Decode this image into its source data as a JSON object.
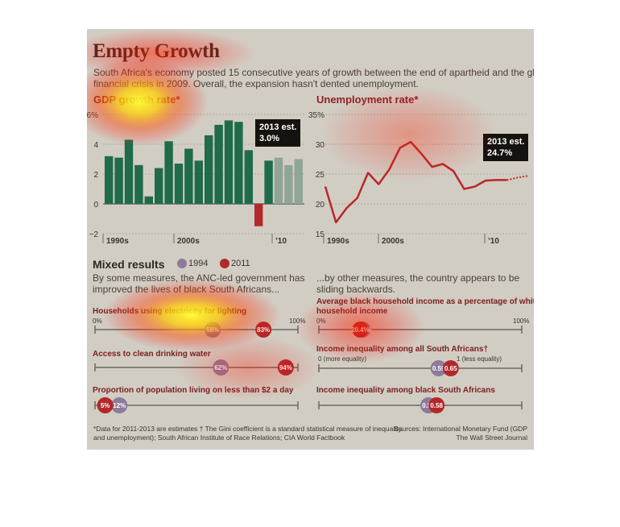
{
  "header": {
    "title": "Empty Growth",
    "intro_line1": "South Africa's economy posted 15 consecutive years of growth between the end of apartheid and the global",
    "intro_line2": "financial crisis in 2009. Overall, the expansion hasn't dented unemployment."
  },
  "colors": {
    "bar_actual": "#1f6b4a",
    "bar_estimate": "#8fa595",
    "bar_negative": "#b3282a",
    "line": "#b8272a",
    "dot_1994": "#8c7b9b",
    "dot_2011": "#b3282a"
  },
  "chart_data": [
    {
      "type": "bar",
      "title": "GDP growth rate*",
      "categories": [
        "1994",
        "1995",
        "1996",
        "1997",
        "1998",
        "1999",
        "2000",
        "2001",
        "2002",
        "2003",
        "2004",
        "2005",
        "2006",
        "2007",
        "2008",
        "2009",
        "2010",
        "2011",
        "2012",
        "2013"
      ],
      "values": [
        3.2,
        3.1,
        4.3,
        2.6,
        0.5,
        2.4,
        4.2,
        2.7,
        3.7,
        2.9,
        4.6,
        5.3,
        5.6,
        5.5,
        3.6,
        -1.5,
        2.9,
        3.1,
        2.6,
        3.0
      ],
      "estimate_from": "2011",
      "ylim": [
        -2,
        6
      ],
      "yticks": [
        "6%",
        "4",
        "2",
        "0",
        "−2"
      ],
      "xticks": [
        "1990s",
        "2000s",
        "’10"
      ],
      "annotation": {
        "line1": "2013 est.",
        "line2": "3.0%"
      }
    },
    {
      "type": "line",
      "title": "Unemployment rate*",
      "x": [
        "1994",
        "1995",
        "1996",
        "1997",
        "1998",
        "1999",
        "2000",
        "2001",
        "2002",
        "2003",
        "2004",
        "2005",
        "2006",
        "2007",
        "2008",
        "2009",
        "2010",
        "2011",
        "2012",
        "2013"
      ],
      "values": [
        22.9,
        16.9,
        19.3,
        21.0,
        25.2,
        23.3,
        25.8,
        29.4,
        30.4,
        28.4,
        26.2,
        26.7,
        25.5,
        22.5,
        22.9,
        23.9,
        24.0,
        24.0,
        24.4,
        24.7
      ],
      "estimate_from": "2011",
      "ylim": [
        15,
        35
      ],
      "yticks": [
        "35%",
        "30",
        "25",
        "20",
        "15"
      ],
      "xticks": [
        "1990s",
        "2000s",
        "’10"
      ],
      "annotation": {
        "line1": "2013 est.",
        "line2": "24.7%"
      }
    }
  ],
  "mixed": {
    "heading": "Mixed results",
    "legend": [
      "1994",
      "2011"
    ],
    "left_desc1": "By some measures, the ANC-led government has",
    "left_desc2": "improved the lives of black South Africans...",
    "right_desc1": "...by other measures, the country appears to be",
    "right_desc2": "sliding backwards."
  },
  "indicators_left": [
    {
      "label": "Households using electricity for lighting",
      "v1994": 58,
      "v2011": 83,
      "t1994": "58%",
      "t2011": "83%",
      "min_label": "0%",
      "max_label": "100%"
    },
    {
      "label": "Access to clean drinking water",
      "v1994": 62,
      "v2011": 94,
      "t1994": "62%",
      "t2011": "94%"
    },
    {
      "label": "Proportion of population living on less than $2 a day",
      "v1994": 12,
      "v2011": 5,
      "t1994": "12%",
      "t2011": "5%"
    }
  ],
  "indicators_right": [
    {
      "label1": "Average black household income as a percentage of white",
      "label2": "household income",
      "v1994": 21.5,
      "v2011": 20.4,
      "t1994": "21.5%",
      "t2011": "20.4%",
      "min_label": "0%",
      "max_label": "100%"
    },
    {
      "label1": "Income inequality among all South Africans†",
      "v1994": 0.59,
      "v2011": 0.65,
      "t1994": "0.59",
      "t2011": "0.65",
      "min_label": "0 (more equality)",
      "max_label": "1 (less equality)"
    },
    {
      "label1": "Income inequality among black South Africans",
      "v1994": 0.54,
      "v2011": 0.58,
      "t1994": "0.54",
      "t2011": "0.58"
    }
  ],
  "footer": {
    "left1": "*Data for 2011-2013 are estimates  † The Gini coefficient is a standard statistical measure of inequality.",
    "left2": "and unemployment); South African Institute of Race Relations; CIA World Factbook",
    "right1": "Sources: International Monetary Fund (GDP",
    "right2": "The Wall Street Journal"
  }
}
